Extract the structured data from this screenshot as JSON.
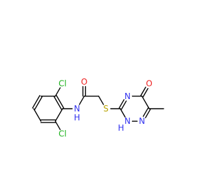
{
  "atom_labels": [
    "Cl",
    "Cl",
    "N",
    "H",
    "O",
    "S",
    "N",
    "N",
    "H",
    "N",
    "O"
  ]
}
